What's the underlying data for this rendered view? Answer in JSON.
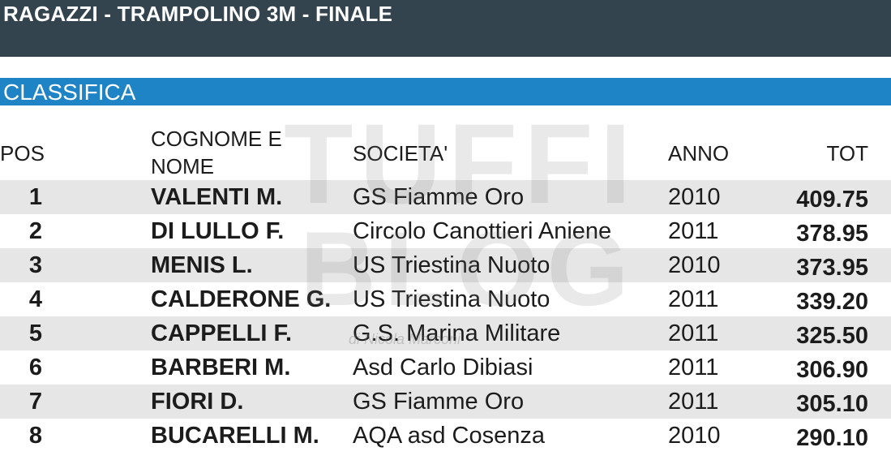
{
  "header": {
    "title": "RAGAZZI - TRAMPOLINO 3M - FINALE"
  },
  "section": {
    "label": "CLASSIFICA"
  },
  "watermark": {
    "line1": "TUFFI",
    "line2": "BLOG",
    "credit": "di Nicola Marconi"
  },
  "columns": {
    "pos": "POS",
    "name_line1": "COGNOME E",
    "name_line2": "NOME",
    "societa": "SOCIETA'",
    "anno": "ANNO",
    "tot": "TOT"
  },
  "rows": [
    {
      "pos": "1",
      "name": "VALENTI M.",
      "societa": "GS Fiamme Oro",
      "anno": "2010",
      "tot": "409.75"
    },
    {
      "pos": "2",
      "name": "DI LULLO F.",
      "societa": "Circolo Canottieri Aniene",
      "anno": "2011",
      "tot": "378.95"
    },
    {
      "pos": "3",
      "name": "MENIS L.",
      "societa": "US Triestina Nuoto",
      "anno": "2010",
      "tot": "373.95"
    },
    {
      "pos": "4",
      "name": "CALDERONE G.",
      "societa": "US Triestina Nuoto",
      "anno": "2011",
      "tot": "339.20"
    },
    {
      "pos": "5",
      "name": "CAPPELLI F.",
      "societa": "G.S. Marina Militare",
      "anno": "2011",
      "tot": "325.50"
    },
    {
      "pos": "6",
      "name": "BARBERI M.",
      "societa": "Asd Carlo Dibiasi",
      "anno": "2011",
      "tot": "306.90"
    },
    {
      "pos": "7",
      "name": "FIORI D.",
      "societa": "GS Fiamme Oro",
      "anno": "2011",
      "tot": "305.10"
    },
    {
      "pos": "8",
      "name": "BUCARELLI M.",
      "societa": "AQA asd Cosenza",
      "anno": "2010",
      "tot": "290.10"
    }
  ]
}
